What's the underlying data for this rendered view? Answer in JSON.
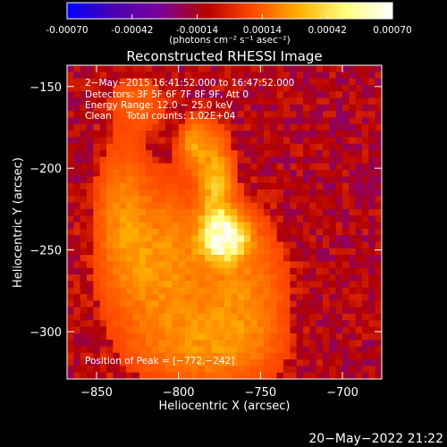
{
  "colorbar": {
    "tick_labels": [
      "-0.00070",
      "-0.00042",
      "-0.00014",
      "0.00014",
      "0.00042",
      "0.00070"
    ],
    "tick_values": [
      -0.0007,
      -0.00042,
      -0.00014,
      0.00014,
      0.00042,
      0.0007
    ],
    "range": [
      -0.0007,
      0.0007
    ],
    "unit_label": "(photons cm⁻² s⁻¹ asec⁻²)",
    "colors": [
      "#0000ff",
      "#4a00b0",
      "#7a009a",
      "#b40000",
      "#ff4a00",
      "#ffb000",
      "#ffff80",
      "#ffffff"
    ]
  },
  "chart_data": {
    "type": "heatmap",
    "title": "Reconstructed RHESSI Image",
    "xlabel": "Heliocentric X (arcsec)",
    "ylabel": "Heliocentric Y (arcsec)",
    "xlim": [
      -868,
      -676
    ],
    "ylim": [
      -329,
      -137
    ],
    "x_ticks": [
      -850,
      -800,
      -750,
      -700
    ],
    "y_ticks": [
      -300,
      -250,
      -200,
      -150
    ],
    "x_tick_labels": [
      "−850",
      "−800",
      "−750",
      "−700"
    ],
    "y_tick_labels": [
      "−300",
      "−250",
      "−200",
      "−150"
    ],
    "annotations": [
      "2−May−2015 16:41:52.000 to 16:47:52.000",
      "Detectors: 3F 5F 6F 7F 8F 9F, Att 0",
      "Energy Range: 12.0 − 25.0 keV",
      "Clean     Total counts: 1.02E+04"
    ],
    "peak_label": "Position of Peak = [−772,−242]",
    "peak": {
      "x": -772,
      "y": -242
    },
    "grid": false,
    "legend": "none",
    "image": {
      "ncols": 48,
      "nrows": 48,
      "source_min": 3e-05,
      "source_max": 0.0007,
      "background_level": -0.00012,
      "components": [
        {
          "x": -772,
          "y": -242,
          "sx": 9,
          "sy": 9,
          "amp": 1.0
        },
        {
          "x": -777,
          "y": -210,
          "sx": 7,
          "sy": 20,
          "amp": 0.45
        },
        {
          "x": -790,
          "y": -185,
          "sx": 6,
          "sy": 10,
          "amp": 0.35
        },
        {
          "x": -812,
          "y": -260,
          "sx": 22,
          "sy": 35,
          "amp": 0.35
        },
        {
          "x": -760,
          "y": -275,
          "sx": 18,
          "sy": 30,
          "amp": 0.28
        },
        {
          "x": -782,
          "y": -310,
          "sx": 26,
          "sy": 16,
          "amp": 0.25
        },
        {
          "x": -835,
          "y": -225,
          "sx": 10,
          "sy": 28,
          "amp": 0.22
        },
        {
          "x": -825,
          "y": -160,
          "sx": 12,
          "sy": 12,
          "amp": 0.18
        }
      ]
    }
  },
  "timestamp": "20−May−2022 21:22"
}
